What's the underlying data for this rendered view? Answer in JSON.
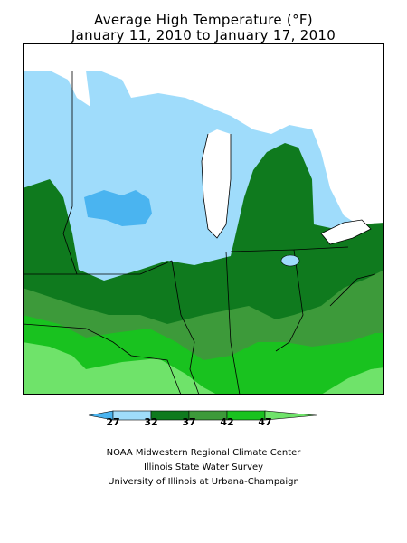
{
  "title": {
    "line1": "Average High Temperature (°F)",
    "line2": "January 11, 2010 to January 17, 2010"
  },
  "legend": {
    "ticks": [
      "27",
      "32",
      "37",
      "42",
      "47"
    ],
    "colors": [
      "#4ab4f0",
      "#9fdcfb",
      "#0f7a1e",
      "#3d9a3a",
      "#19c21f",
      "#6fe36a"
    ]
  },
  "map": {
    "region": "Midwest",
    "colors": {
      "lt27": "#4ab4f0",
      "t27_32": "#9fdcfb",
      "t32_37": "#0f7a1e",
      "t37_42": "#3d9a3a",
      "t42_47": "#19c21f",
      "gt47": "#6fe36a",
      "water": "#ffffff",
      "border": "#000000"
    }
  },
  "credits": {
    "line1": "NOAA Midwestern Regional Climate Center",
    "line2": "Illinois State Water Survey",
    "line3": "University of Illinois at Urbana-Champaign"
  }
}
